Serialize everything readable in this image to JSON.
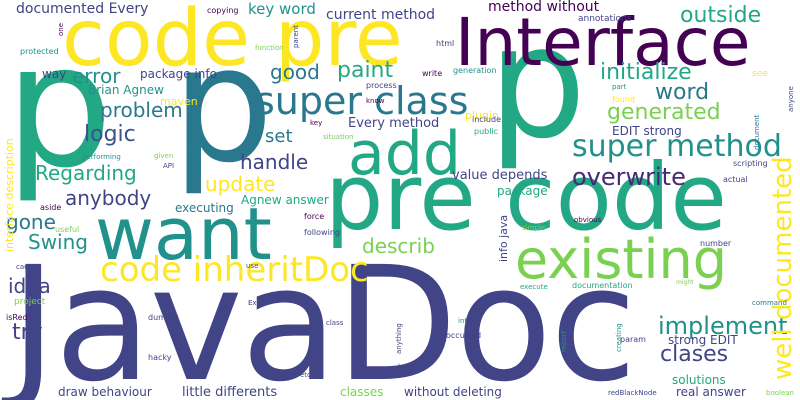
{
  "words": [
    {
      "text": "JavaDoc",
      "color": "#414487"
    },
    {
      "text": "pre code",
      "color": "#22a884"
    },
    {
      "text": "code pre",
      "color": "#fde725"
    },
    {
      "text": "p",
      "color": "#22a884"
    },
    {
      "text": "p",
      "color": "#2a788e"
    },
    {
      "text": "p",
      "color": "#22a884"
    },
    {
      "text": "Interface",
      "color": "#440154"
    },
    {
      "text": "want",
      "color": "#21918c"
    },
    {
      "text": "add",
      "color": "#22a884"
    },
    {
      "text": "existing",
      "color": "#7ad151"
    },
    {
      "text": "code inheritDoc",
      "color": "#fde725"
    },
    {
      "text": "super class",
      "color": "#2a788e"
    },
    {
      "text": "super method",
      "color": "#21918c"
    },
    {
      "text": "outside",
      "color": "#22a884"
    },
    {
      "text": "overwrite",
      "color": "#482878"
    },
    {
      "text": "implement",
      "color": "#21918c"
    },
    {
      "text": "clases",
      "color": "#414487"
    },
    {
      "text": "well documented",
      "color": "#fde725"
    },
    {
      "text": "error",
      "color": "#21918c"
    },
    {
      "text": "paint",
      "color": "#22a884"
    },
    {
      "text": "good",
      "color": "#2a788e"
    },
    {
      "text": "initialize",
      "color": "#22a884"
    },
    {
      "text": "word",
      "color": "#2a788e"
    },
    {
      "text": "generated",
      "color": "#7ad151"
    },
    {
      "text": "problem",
      "color": "#2a788e"
    },
    {
      "text": "logic",
      "color": "#3b528b"
    },
    {
      "text": "set",
      "color": "#2a788e"
    },
    {
      "text": "handle",
      "color": "#414487"
    },
    {
      "text": "Regarding",
      "color": "#22a884"
    },
    {
      "text": "update",
      "color": "#fde725"
    },
    {
      "text": "anybody",
      "color": "#414487"
    },
    {
      "text": "gone",
      "color": "#2a788e"
    },
    {
      "text": "Swing",
      "color": "#21918c"
    },
    {
      "text": "describ",
      "color": "#7ad151"
    },
    {
      "text": "idea",
      "color": "#414487"
    },
    {
      "text": "try",
      "color": "#414487"
    },
    {
      "text": "documented Every",
      "color": "#414487"
    },
    {
      "text": "key word",
      "color": "#21918c"
    },
    {
      "text": "current method",
      "color": "#414487"
    },
    {
      "text": "method without",
      "color": "#440154"
    },
    {
      "text": "package info",
      "color": "#414487"
    },
    {
      "text": "Brian Agnew",
      "color": "#21918c"
    },
    {
      "text": "maven",
      "color": "#fde725"
    },
    {
      "text": "Every method",
      "color": "#414487"
    },
    {
      "text": "plugin",
      "color": "#fde725"
    },
    {
      "text": "value depends",
      "color": "#414487"
    },
    {
      "text": "package",
      "color": "#22a884"
    },
    {
      "text": "EDIT strong",
      "color": "#414487"
    },
    {
      "text": "Agnew answer",
      "color": "#22a884"
    },
    {
      "text": "executing",
      "color": "#2a788e"
    },
    {
      "text": "strong EDIT",
      "color": "#414487"
    },
    {
      "text": "solutions",
      "color": "#22a884"
    },
    {
      "text": "real answer",
      "color": "#414487"
    },
    {
      "text": "little differents",
      "color": "#414487"
    },
    {
      "text": "draw behaviour",
      "color": "#414487"
    },
    {
      "text": "classes",
      "color": "#7ad151"
    },
    {
      "text": "without deleting",
      "color": "#414487"
    },
    {
      "text": "info java",
      "color": "#414487"
    },
    {
      "text": "interface description",
      "color": "#fde725"
    },
    {
      "text": "way",
      "color": "#414487"
    },
    {
      "text": "copying",
      "color": "#440154"
    },
    {
      "text": "annotations",
      "color": "#414487"
    },
    {
      "text": "generation",
      "color": "#21918c"
    },
    {
      "text": "process",
      "color": "#414487"
    },
    {
      "text": "write",
      "color": "#440154"
    },
    {
      "text": "see",
      "color": "#fde725"
    },
    {
      "text": "html",
      "color": "#414487"
    },
    {
      "text": "function",
      "color": "#7ad151"
    },
    {
      "text": "parent",
      "color": "#414487"
    },
    {
      "text": "one",
      "color": "#440154"
    },
    {
      "text": "protected",
      "color": "#21918c"
    },
    {
      "text": "found",
      "color": "#fde725"
    },
    {
      "text": "part",
      "color": "#21918c"
    },
    {
      "text": "know",
      "color": "#440154"
    },
    {
      "text": "include",
      "color": "#414487"
    },
    {
      "text": "public",
      "color": "#22a884"
    },
    {
      "text": "key",
      "color": "#440154"
    },
    {
      "text": "situation",
      "color": "#7ad151"
    },
    {
      "text": "performing",
      "color": "#21918c"
    },
    {
      "text": "given",
      "color": "#7ad151"
    },
    {
      "text": "API",
      "color": "#414487"
    },
    {
      "text": "scripting",
      "color": "#414487"
    },
    {
      "text": "actual",
      "color": "#414487"
    },
    {
      "text": "document",
      "color": "#2a788e"
    },
    {
      "text": "anyone",
      "color": "#414487"
    },
    {
      "text": "aside",
      "color": "#440154"
    },
    {
      "text": "useful",
      "color": "#7ad151"
    },
    {
      "text": "force",
      "color": "#440154"
    },
    {
      "text": "following",
      "color": "#414487"
    },
    {
      "text": "simple",
      "color": "#7ad151"
    },
    {
      "text": "obvious",
      "color": "#440154"
    },
    {
      "text": "number",
      "color": "#414487"
    },
    {
      "text": "cause",
      "color": "#414487"
    },
    {
      "text": "use",
      "color": "#414487"
    },
    {
      "text": "project",
      "color": "#7ad151"
    },
    {
      "text": "Exit",
      "color": "#414487"
    },
    {
      "text": "execute",
      "color": "#22a884"
    },
    {
      "text": "documentation",
      "color": "#22a884"
    },
    {
      "text": "might",
      "color": "#7ad151"
    },
    {
      "text": "command",
      "color": "#2a788e"
    },
    {
      "text": "isRed",
      "color": "#440154"
    },
    {
      "text": "dummy",
      "color": "#414487"
    },
    {
      "text": "class",
      "color": "#414487"
    },
    {
      "text": "int",
      "color": "#21918c"
    },
    {
      "text": "report",
      "color": "#21918c"
    },
    {
      "text": "creating",
      "color": "#21918c"
    },
    {
      "text": "param",
      "color": "#414487"
    },
    {
      "text": "occurred",
      "color": "#414487"
    },
    {
      "text": "anything",
      "color": "#414487"
    },
    {
      "text": "hacky",
      "color": "#414487"
    },
    {
      "text": "etc",
      "color": "#414487"
    },
    {
      "text": "build",
      "color": "#414487"
    },
    {
      "text": "redBlackNode",
      "color": "#414487"
    },
    {
      "text": "boolean",
      "color": "#7ad151"
    }
  ]
}
